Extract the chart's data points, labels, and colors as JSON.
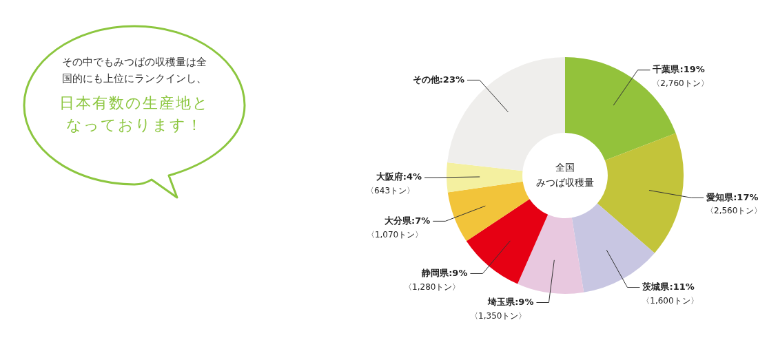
{
  "chart_data": {
    "type": "donut",
    "title": "全国みつば収穫量",
    "categories": [
      "千葉県",
      "愛知県",
      "茨城県",
      "埼玉県",
      "静岡県",
      "大分県",
      "大阪府",
      "その他"
    ],
    "values": [
      19,
      17,
      11,
      9,
      9,
      7,
      4,
      23
    ],
    "value_labels": [
      ":19%\n〈2,760トン〉",
      ":17%\n〈2,560トン〉",
      ":11%\n〈1,600トン〉",
      ":9%\n〈1,350トン〉",
      ":9%\n〈1,280トン〉",
      ":7%\n〈1,070トン〉",
      ":4%\n〈643トン〉",
      ":23%"
    ],
    "colors": [
      "#93c23b",
      "#c3c43a",
      "#c8c6e2",
      "#e8c8df",
      "#e60013",
      "#f2c43a",
      "#f4f0a0",
      "#efeeec"
    ],
    "legend": false,
    "annotations": [
      "その中でもみつばの収穫量は全国的にも上位にランクインし、",
      "日本有数の生産地となっております！"
    ]
  }
}
